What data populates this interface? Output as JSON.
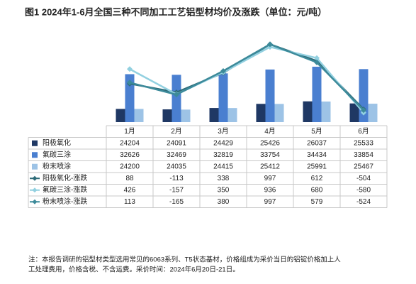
{
  "chart_data": {
    "type": "bar",
    "title": "图1  2024年1-6月全国三种不同加工工艺铝型材均价及涨跌（单位：元/吨）",
    "categories": [
      "1月",
      "2月",
      "3月",
      "4月",
      "5月",
      "6月"
    ],
    "ylim": [
      21000,
      42000
    ],
    "y2lim": [
      -800,
      1200
    ],
    "series": [
      {
        "name": "阳极氧化",
        "type": "bar",
        "color": "#1f3864",
        "values": [
          24204,
          24091,
          24429,
          25426,
          26037,
          25533
        ]
      },
      {
        "name": "氟碳三涂",
        "type": "bar",
        "color": "#4a7fd0",
        "values": [
          32626,
          32469,
          32819,
          33754,
          34434,
          33854
        ]
      },
      {
        "name": "粉末喷涂",
        "type": "bar",
        "color": "#9dc3e6",
        "values": [
          24200,
          24035,
          24415,
          25412,
          25991,
          25467
        ]
      },
      {
        "name": "阳极氧化-涨跌",
        "type": "line",
        "axis": "y2",
        "color": "#2e6b78",
        "values": [
          88,
          -113,
          338,
          997,
          612,
          -504
        ]
      },
      {
        "name": "氟碳三涂-涨跌",
        "type": "line",
        "axis": "y2",
        "color": "#92d0e0",
        "values": [
          426,
          -157,
          350,
          936,
          680,
          -580
        ]
      },
      {
        "name": "粉末喷涂-涨跌",
        "type": "line",
        "axis": "y2",
        "color": "#3c8a9a",
        "values": [
          113,
          -165,
          380,
          997,
          579,
          -524
        ]
      }
    ],
    "note": [
      "注：本报告调研的铝型材类型选用常见的6063系列、T5状态基材，价格组成为采价当日的铝锭价格加上人",
      "工处理费用，价格含税、不含运费。采价时间：2024年6月20日-21日。"
    ]
  }
}
